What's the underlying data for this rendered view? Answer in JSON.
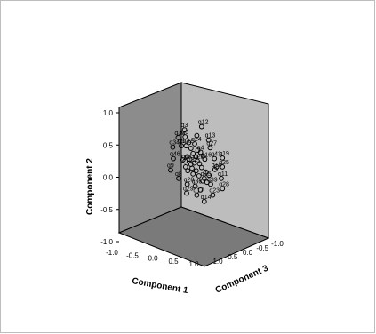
{
  "chart_data": {
    "type": "scatter",
    "title": "",
    "axes": {
      "x": {
        "label": "Component 1",
        "range": [
          -1.0,
          1.0
        ],
        "ticks": [
          "-1.0",
          "-0.5",
          "0.0",
          "0.5",
          "1.0"
        ]
      },
      "y": {
        "label": "Component 2",
        "range": [
          -1.0,
          1.0
        ],
        "ticks": [
          "-1.0",
          "-0.5",
          "0.0",
          "0.5",
          "1.0"
        ]
      },
      "z": {
        "label": "Component 3",
        "range": [
          -1.0,
          1.0
        ],
        "ticks": [
          "1.0",
          "0.5",
          "0.0",
          "-0.5",
          "-1.0"
        ]
      }
    },
    "colors": {
      "back_wall": "#8c8c8c",
      "side_wall": "#bdbdbd",
      "floor": "#7a7a7a",
      "edge": "#000000",
      "marker": "#000000"
    },
    "points": [
      {
        "label": "q3",
        "x": 0.06,
        "y": 0.72,
        "z": 0.0
      },
      {
        "label": "q12",
        "x": 0.38,
        "y": 0.77,
        "z": 0.0
      },
      {
        "label": "q33",
        "x": -0.06,
        "y": 0.6,
        "z": 0.0
      },
      {
        "label": "q6",
        "x": 0.07,
        "y": 0.61,
        "z": 0.0
      },
      {
        "label": "q13",
        "x": 0.51,
        "y": 0.56,
        "z": 0.0
      },
      {
        "label": "q5",
        "x": 0.0,
        "y": 0.47,
        "z": 0.0
      },
      {
        "label": "q32",
        "x": 0.09,
        "y": 0.47,
        "z": 0.0
      },
      {
        "label": "q24",
        "x": 0.25,
        "y": 0.5,
        "z": 0.0
      },
      {
        "label": "q34",
        "x": -0.16,
        "y": 0.45,
        "z": 0.0
      },
      {
        "label": "q27",
        "x": 0.54,
        "y": 0.44,
        "z": 0.0
      },
      {
        "label": "q4",
        "x": 0.36,
        "y": 0.37,
        "z": 0.0
      },
      {
        "label": "q46",
        "x": -0.15,
        "y": 0.27,
        "z": 0.0
      },
      {
        "label": "q44",
        "x": 0.07,
        "y": 0.23,
        "z": 0.0
      },
      {
        "label": "q31",
        "x": 0.18,
        "y": 0.18,
        "z": 0.0
      },
      {
        "label": "q22",
        "x": 0.3,
        "y": 0.23,
        "z": 0.0
      },
      {
        "label": "q16",
        "x": 0.44,
        "y": 0.26,
        "z": 0.0
      },
      {
        "label": "q43",
        "x": 0.62,
        "y": 0.27,
        "z": 0.0
      },
      {
        "label": "q19",
        "x": 0.77,
        "y": 0.28,
        "z": 0.0
      },
      {
        "label": "q25",
        "x": 0.77,
        "y": 0.14,
        "z": 0.0
      },
      {
        "label": "q10",
        "x": 0.63,
        "y": 0.1,
        "z": 0.0
      },
      {
        "label": "q9",
        "x": -0.2,
        "y": 0.09,
        "z": 0.0
      },
      {
        "label": "q8",
        "x": -0.05,
        "y": -0.04,
        "z": 0.0
      },
      {
        "label": "q11",
        "x": 0.75,
        "y": -0.04,
        "z": 0.0
      },
      {
        "label": "q15",
        "x": 0.43,
        "y": -0.04,
        "z": 0.0
      },
      {
        "label": "q28",
        "x": 0.11,
        "y": -0.13,
        "z": 0.0
      },
      {
        "label": "q36",
        "x": 0.26,
        "y": -0.16,
        "z": 0.0
      },
      {
        "label": "q39",
        "x": 0.55,
        "y": -0.13,
        "z": 0.0
      },
      {
        "label": "q28",
        "x": 0.77,
        "y": -0.2,
        "z": 0.0
      },
      {
        "label": "q29",
        "x": 0.1,
        "y": -0.27,
        "z": 0.0
      },
      {
        "label": "q17",
        "x": 0.29,
        "y": -0.3,
        "z": 0.0
      },
      {
        "label": "q23",
        "x": 0.59,
        "y": -0.3,
        "z": 0.0
      },
      {
        "label": "q14",
        "x": 0.43,
        "y": -0.4,
        "z": 0.0
      }
    ],
    "unlabeled_points": [
      {
        "x": 0.18,
        "y": 0.43
      },
      {
        "x": 0.22,
        "y": 0.35
      },
      {
        "x": 0.27,
        "y": 0.3
      },
      {
        "x": 0.11,
        "y": 0.3
      },
      {
        "x": 0.16,
        "y": 0.26
      },
      {
        "x": 0.24,
        "y": 0.2
      },
      {
        "x": 0.34,
        "y": 0.19
      },
      {
        "x": 0.38,
        "y": 0.13
      },
      {
        "x": 0.2,
        "y": 0.12
      },
      {
        "x": 0.12,
        "y": 0.08
      },
      {
        "x": 0.28,
        "y": 0.08
      },
      {
        "x": 0.46,
        "y": 0.06
      },
      {
        "x": 0.52,
        "y": 0.01
      },
      {
        "x": 0.33,
        "y": 0.0
      },
      {
        "x": 0.22,
        "y": 0.03
      },
      {
        "x": 0.4,
        "y": -0.08
      },
      {
        "x": 0.48,
        "y": -0.1
      },
      {
        "x": 0.36,
        "y": -0.22
      },
      {
        "x": 0.66,
        "y": 0.14
      },
      {
        "x": 0.08,
        "y": 0.14
      },
      {
        "x": 0.03,
        "y": 0.25
      },
      {
        "x": 0.31,
        "y": 0.4
      },
      {
        "x": 0.41,
        "y": 0.31
      },
      {
        "x": 0.14,
        "y": 0.52
      },
      {
        "x": 0.29,
        "y": 0.63
      }
    ]
  }
}
